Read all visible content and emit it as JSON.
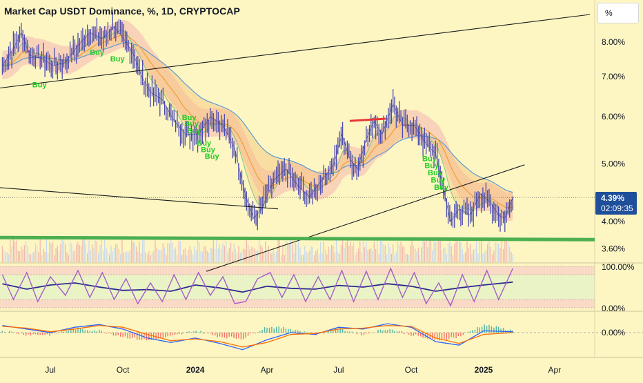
{
  "header": {
    "title": "Market Cap USDT Dominance, %, 1D, CRYPTOCAP",
    "scale_label": "%"
  },
  "price_tag": {
    "value": "4.39%",
    "countdown": "02:09:35"
  },
  "chart_data": [
    {
      "type": "line",
      "panel": "main",
      "title": "Market Cap USDT Dominance, %, 1D, CRYPTOCAP",
      "y_scale": "log",
      "ylim": [
        3.45,
        9.0
      ],
      "y_ticks": [
        "8.00%",
        "7.00%",
        "6.00%",
        "5.00%",
        "4.00%",
        "3.60%"
      ],
      "y_tick_values": [
        8.0,
        7.0,
        6.0,
        5.0,
        4.0,
        3.6
      ],
      "x_ticks": [
        "Jul",
        "Oct",
        "2024",
        "Apr",
        "Jul",
        "Oct",
        "2025",
        "Apr"
      ],
      "x_tick_dates": [
        "2023-07-01",
        "2023-10-01",
        "2024-01-01",
        "2024-04-01",
        "2024-07-01",
        "2024-10-01",
        "2025-01-01",
        "2025-04-01"
      ],
      "xlim": [
        "2023-04-28",
        "2025-05-22"
      ],
      "last_value": 4.39,
      "series": [
        {
          "values": [
            [
              "2023-05-01",
              7.3
            ],
            [
              "2023-05-15",
              7.8
            ],
            [
              "2023-05-25",
              8.3
            ],
            [
              "2023-06-05",
              7.6
            ],
            [
              "2023-06-20",
              7.5
            ],
            [
              "2023-07-05",
              7.3
            ],
            [
              "2023-07-20",
              7.4
            ],
            [
              "2023-08-05",
              7.9
            ],
            [
              "2023-08-20",
              8.3
            ],
            [
              "2023-09-05",
              8.1
            ],
            [
              "2023-09-20",
              8.5
            ],
            [
              "2023-10-05",
              8.0
            ],
            [
              "2023-10-15",
              7.6
            ],
            [
              "2023-10-25",
              7.0
            ],
            [
              "2023-11-05",
              6.6
            ],
            [
              "2023-11-20",
              6.4
            ],
            [
              "2023-12-05",
              5.9
            ],
            [
              "2023-12-20",
              5.6
            ],
            [
              "2024-01-05",
              5.6
            ],
            [
              "2024-01-20",
              6.0
            ],
            [
              "2024-02-05",
              5.8
            ],
            [
              "2024-02-20",
              5.3
            ],
            [
              "2024-03-05",
              4.4
            ],
            [
              "2024-03-15",
              4.05
            ],
            [
              "2024-03-25",
              4.2
            ],
            [
              "2024-04-10",
              4.7
            ],
            [
              "2024-04-25",
              4.9
            ],
            [
              "2024-05-10",
              4.6
            ],
            [
              "2024-05-25",
              4.4
            ],
            [
              "2024-06-10",
              4.7
            ],
            [
              "2024-06-25",
              5.0
            ],
            [
              "2024-07-05",
              5.6
            ],
            [
              "2024-07-15",
              5.1
            ],
            [
              "2024-07-25",
              4.9
            ],
            [
              "2024-08-05",
              5.5
            ],
            [
              "2024-08-15",
              5.9
            ],
            [
              "2024-08-25",
              5.6
            ],
            [
              "2024-09-08",
              6.3
            ],
            [
              "2024-09-20",
              5.8
            ],
            [
              "2024-10-05",
              5.8
            ],
            [
              "2024-10-20",
              5.4
            ],
            [
              "2024-11-01",
              5.2
            ],
            [
              "2024-11-10",
              4.6
            ],
            [
              "2024-11-20",
              4.0
            ],
            [
              "2024-12-01",
              4.2
            ],
            [
              "2024-12-15",
              4.1
            ],
            [
              "2024-12-28",
              4.45
            ],
            [
              "2025-01-10",
              4.3
            ],
            [
              "2025-01-20",
              4.1
            ],
            [
              "2025-01-28",
              4.05
            ],
            [
              "2025-02-07",
              4.39
            ]
          ]
        }
      ],
      "annotations": [
        {
          "text": "Buy",
          "date": "2023-06-08",
          "value": 6.72
        },
        {
          "text": "Buy",
          "date": "2023-08-20",
          "value": 7.62
        },
        {
          "text": "Buy",
          "date": "2023-09-15",
          "value": 7.42
        },
        {
          "text": "Buy",
          "date": "2023-12-15",
          "value": 5.92
        },
        {
          "text": "Buy",
          "date": "2023-12-18",
          "value": 5.78
        },
        {
          "text": "Buy",
          "date": "2023-12-21",
          "value": 5.63
        },
        {
          "text": "Buy",
          "date": "2024-01-03",
          "value": 5.36
        },
        {
          "text": "Buy",
          "date": "2024-01-08",
          "value": 5.23
        },
        {
          "text": "Buy",
          "date": "2024-01-13",
          "value": 5.1
        },
        {
          "text": "Buy",
          "date": "2024-10-15",
          "value": 5.05
        },
        {
          "text": "Buy",
          "date": "2024-10-18",
          "value": 4.92
        },
        {
          "text": "Buy",
          "date": "2024-10-22",
          "value": 4.78
        },
        {
          "text": "Buy",
          "date": "2024-10-26",
          "value": 4.65
        },
        {
          "text": "Buy",
          "date": "2024-10-30",
          "value": 4.52
        }
      ],
      "trendlines": [
        {
          "color": "#1a1a1a",
          "from": [
            "2023-04-28",
            6.7
          ],
          "to": [
            "2025-05-16",
            8.9
          ]
        },
        {
          "color": "#1a1a1a",
          "from": [
            "2024-01-15",
            3.3
          ],
          "to": [
            "2025-02-22",
            4.98
          ]
        },
        {
          "color": "#1a1a1a",
          "from": [
            "2023-04-28",
            4.56
          ],
          "to": [
            "2024-04-15",
            4.2
          ]
        },
        {
          "color": "#4caf50",
          "from": [
            "2023-04-28",
            3.76
          ],
          "to": [
            "2025-05-22",
            3.73
          ]
        },
        {
          "color": "#e53935",
          "from": [
            "2024-07-15",
            5.9
          ],
          "to": [
            "2024-08-30",
            5.95
          ]
        }
      ]
    },
    {
      "type": "line",
      "panel": "oscillator",
      "ylim": [
        0,
        100
      ],
      "y_ticks": [
        "100.00%",
        "0.00%"
      ],
      "y_tick_values": [
        100,
        0
      ],
      "band_levels": [
        20,
        80
      ],
      "series": [
        {
          "color": "#2b2b8f",
          "values": [
            [
              "2023-05-01",
              58
            ],
            [
              "2023-06-01",
              45
            ],
            [
              "2023-07-01",
              55
            ],
            [
              "2023-08-01",
              60
            ],
            [
              "2023-09-01",
              50
            ],
            [
              "2023-10-01",
              42
            ],
            [
              "2023-11-01",
              44
            ],
            [
              "2023-12-01",
              40
            ],
            [
              "2024-01-01",
              55
            ],
            [
              "2024-02-01",
              48
            ],
            [
              "2024-03-01",
              38
            ],
            [
              "2024-04-01",
              52
            ],
            [
              "2024-05-01",
              47
            ],
            [
              "2024-06-01",
              45
            ],
            [
              "2024-07-01",
              54
            ],
            [
              "2024-08-01",
              50
            ],
            [
              "2024-09-01",
              58
            ],
            [
              "2024-10-01",
              52
            ],
            [
              "2024-11-01",
              40
            ],
            [
              "2024-12-01",
              48
            ],
            [
              "2025-01-01",
              55
            ],
            [
              "2025-02-07",
              62
            ]
          ]
        },
        {
          "color": "#a35cc8",
          "values": [
            [
              "2023-05-01",
              80
            ],
            [
              "2023-05-15",
              20
            ],
            [
              "2023-06-01",
              85
            ],
            [
              "2023-06-15",
              15
            ],
            [
              "2023-07-01",
              75
            ],
            [
              "2023-07-20",
              30
            ],
            [
              "2023-08-05",
              90
            ],
            [
              "2023-08-20",
              25
            ],
            [
              "2023-09-05",
              85
            ],
            [
              "2023-09-20",
              20
            ],
            [
              "2023-10-05",
              70
            ],
            [
              "2023-10-20",
              10
            ],
            [
              "2023-11-05",
              60
            ],
            [
              "2023-11-20",
              15
            ],
            [
              "2023-12-05",
              80
            ],
            [
              "2023-12-20",
              20
            ],
            [
              "2024-01-05",
              85
            ],
            [
              "2024-01-20",
              30
            ],
            [
              "2024-02-05",
              75
            ],
            [
              "2024-02-20",
              10
            ],
            [
              "2024-03-05",
              15
            ],
            [
              "2024-03-20",
              70
            ],
            [
              "2024-04-05",
              85
            ],
            [
              "2024-04-20",
              25
            ],
            [
              "2024-05-05",
              80
            ],
            [
              "2024-05-20",
              15
            ],
            [
              "2024-06-05",
              75
            ],
            [
              "2024-06-20",
              20
            ],
            [
              "2024-07-05",
              90
            ],
            [
              "2024-07-20",
              15
            ],
            [
              "2024-08-05",
              88
            ],
            [
              "2024-08-20",
              20
            ],
            [
              "2024-09-05",
              95
            ],
            [
              "2024-09-20",
              25
            ],
            [
              "2024-10-05",
              85
            ],
            [
              "2024-10-20",
              10
            ],
            [
              "2024-11-05",
              60
            ],
            [
              "2024-11-20",
              5
            ],
            [
              "2024-12-05",
              80
            ],
            [
              "2024-12-20",
              15
            ],
            [
              "2025-01-05",
              90
            ],
            [
              "2025-01-20",
              20
            ],
            [
              "2025-02-07",
              95
            ]
          ]
        }
      ]
    },
    {
      "type": "line",
      "panel": "macd",
      "y_ticks": [
        "0.00%"
      ],
      "y_tick_values": [
        0
      ],
      "ylim": [
        -1,
        1
      ],
      "series": [
        {
          "color": "#2962ff",
          "values": [
            [
              "2023-05-01",
              0.4
            ],
            [
              "2023-06-01",
              0.2
            ],
            [
              "2023-07-01",
              0.0
            ],
            [
              "2023-08-01",
              0.3
            ],
            [
              "2023-09-01",
              0.45
            ],
            [
              "2023-10-01",
              0.2
            ],
            [
              "2023-11-01",
              -0.3
            ],
            [
              "2023-12-01",
              -0.55
            ],
            [
              "2024-01-01",
              -0.3
            ],
            [
              "2024-02-01",
              -0.6
            ],
            [
              "2024-03-01",
              -0.95
            ],
            [
              "2024-04-01",
              -0.4
            ],
            [
              "2024-05-01",
              0.0
            ],
            [
              "2024-06-01",
              -0.1
            ],
            [
              "2024-07-01",
              0.3
            ],
            [
              "2024-08-01",
              0.2
            ],
            [
              "2024-09-01",
              0.5
            ],
            [
              "2024-10-01",
              0.3
            ],
            [
              "2024-11-01",
              -0.5
            ],
            [
              "2024-12-01",
              -0.7
            ],
            [
              "2025-01-01",
              0.1
            ],
            [
              "2025-02-07",
              0.05
            ]
          ]
        },
        {
          "color": "#ff6d00",
          "values": [
            [
              "2023-05-01",
              0.35
            ],
            [
              "2023-06-01",
              0.25
            ],
            [
              "2023-07-01",
              0.05
            ],
            [
              "2023-08-01",
              0.2
            ],
            [
              "2023-09-01",
              0.4
            ],
            [
              "2023-10-01",
              0.3
            ],
            [
              "2023-11-01",
              -0.1
            ],
            [
              "2023-12-01",
              -0.45
            ],
            [
              "2024-01-01",
              -0.35
            ],
            [
              "2024-02-01",
              -0.5
            ],
            [
              "2024-03-01",
              -0.8
            ],
            [
              "2024-04-01",
              -0.55
            ],
            [
              "2024-05-01",
              -0.1
            ],
            [
              "2024-06-01",
              -0.05
            ],
            [
              "2024-07-01",
              0.2
            ],
            [
              "2024-08-01",
              0.25
            ],
            [
              "2024-09-01",
              0.4
            ],
            [
              "2024-10-01",
              0.35
            ],
            [
              "2024-11-01",
              -0.3
            ],
            [
              "2024-12-01",
              -0.6
            ],
            [
              "2025-01-01",
              -0.1
            ],
            [
              "2025-02-07",
              0.0
            ]
          ]
        }
      ]
    }
  ],
  "colors": {
    "background": "#fdf6c3",
    "candle_up": "#4a4ab0",
    "cloud": "#f5b7b1",
    "ma_blue": "#5b9bd5",
    "ma_orange": "#f0a030",
    "buy_label": "#22cc22",
    "price_tag_bg": "#1f4f9a"
  }
}
